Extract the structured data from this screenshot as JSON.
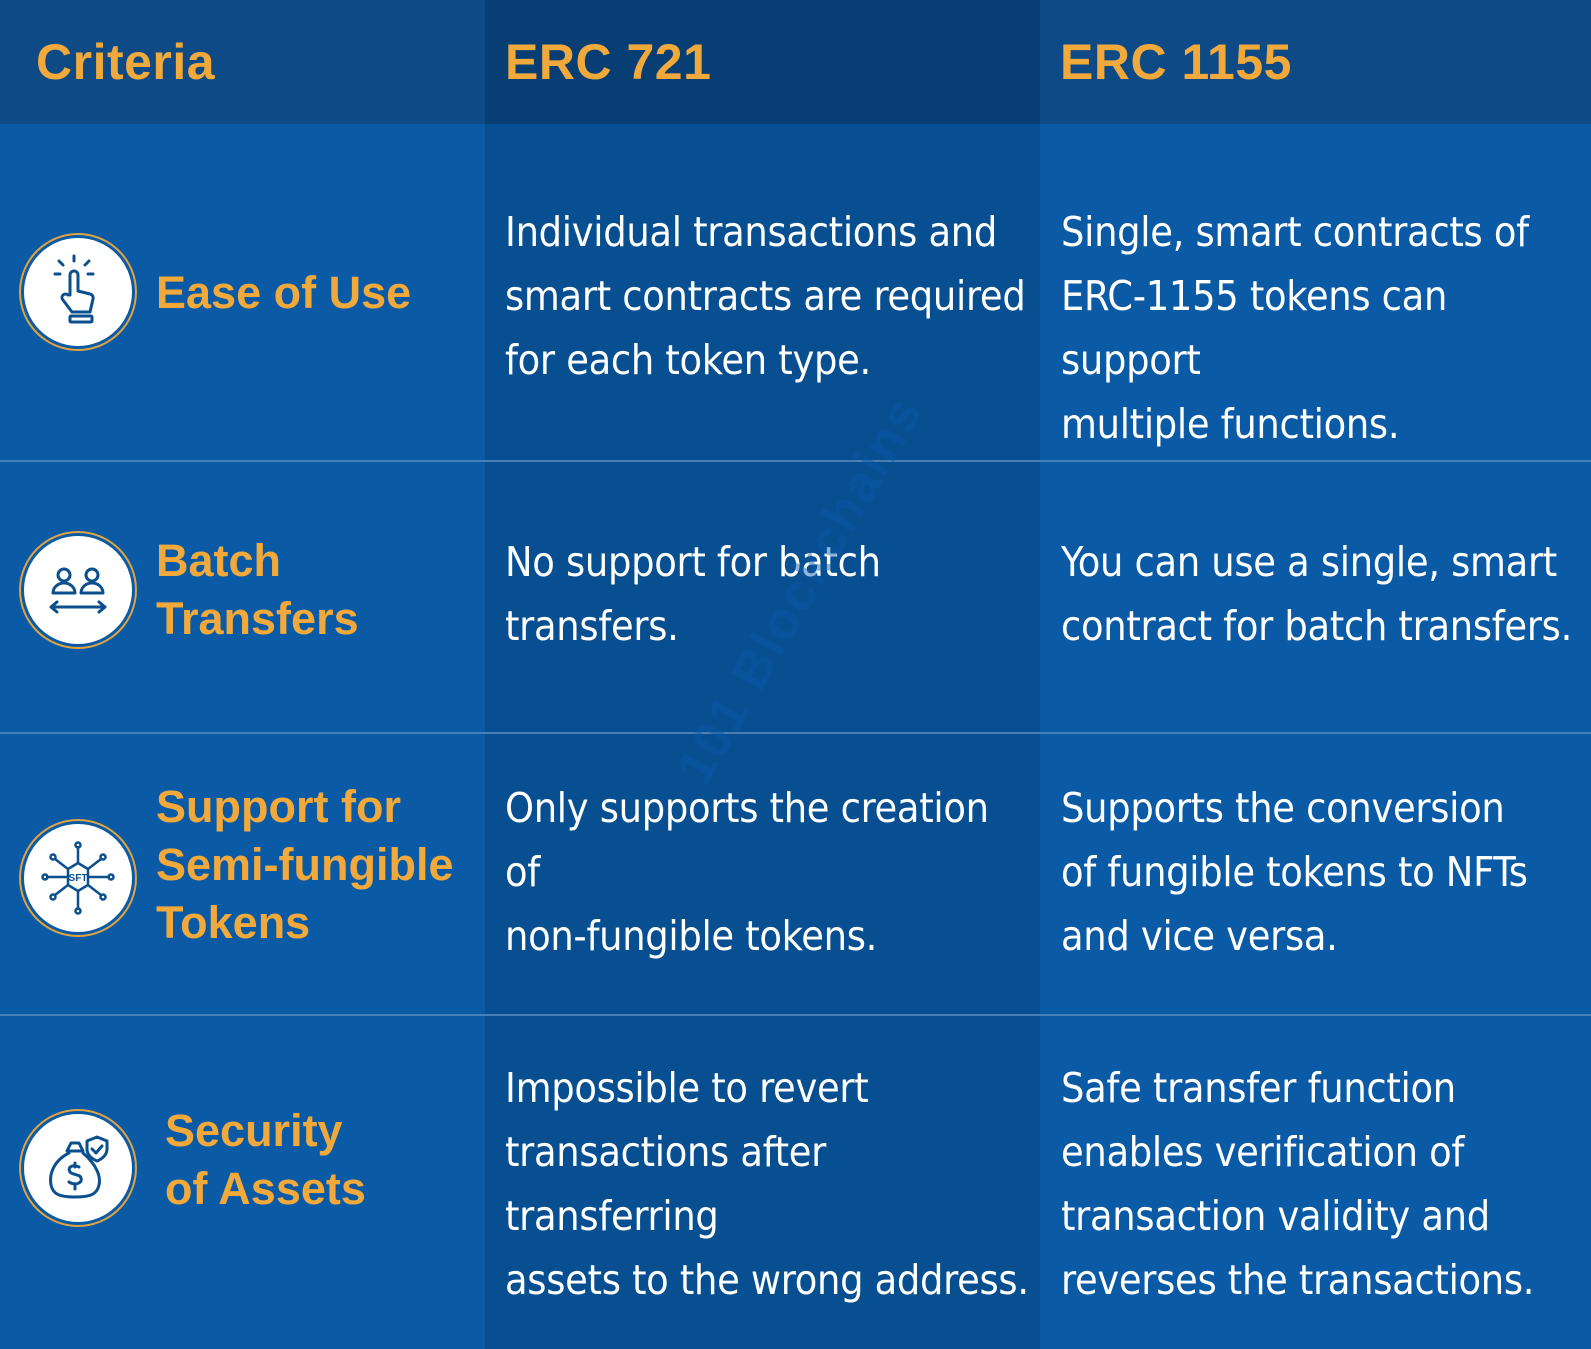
{
  "header": {
    "criteria": "Criteria",
    "erc721": "ERC 721",
    "erc1155": "ERC 1155"
  },
  "rows": [
    {
      "icon": "tap-hand-icon",
      "criteria": "Ease of Use",
      "erc721": "Individual transactions and\nsmart contracts are required\nfor each token type.",
      "erc1155": "Single, smart contracts of\nERC-1155 tokens can support\nmultiple functions."
    },
    {
      "icon": "users-transfer-icon",
      "criteria": "Batch\nTransfers",
      "erc721": "No support for batch\ntransfers.",
      "erc1155": "You can use a single, smart\ncontract for batch transfers."
    },
    {
      "icon": "sft-network-icon",
      "criteria": "Support for\nSemi-fungible\nTokens",
      "erc721": "Only supports the creation of\nnon-fungible tokens.",
      "erc1155": "Supports the conversion\nof fungible tokens to NFTs\nand vice versa."
    },
    {
      "icon": "money-bag-shield-icon",
      "criteria": "Security\nof Assets",
      "erc721": "Impossible to revert\ntransactions after transferring\nassets to the wrong address.",
      "erc1155": "Safe transfer function\nenables verification of\ntransaction validity and\nreverses the transactions."
    }
  ],
  "watermark": "101 Blockchains",
  "icon_text": "SFT",
  "colors": {
    "background": "#0a5aa6",
    "erc721_column": "#084f92",
    "header": "#0d4a86",
    "accent": "#f2a93b",
    "text": "#ffffff"
  }
}
